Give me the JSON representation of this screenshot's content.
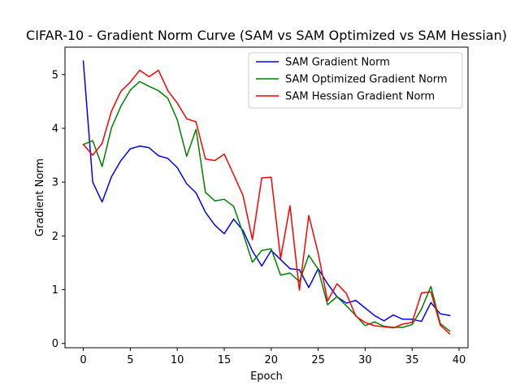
{
  "chart_data": {
    "type": "line",
    "title": "CIFAR-10 - Gradient Norm Curve (SAM vs SAM Optimized vs SAM Hessian)",
    "xlabel": "Epoch",
    "ylabel": "Gradient Norm",
    "xlim": [
      -1.95,
      40.95
    ],
    "ylim": [
      -0.08,
      5.51
    ],
    "xticks": [
      0,
      5,
      10,
      15,
      20,
      25,
      30,
      35,
      40
    ],
    "yticks": [
      0,
      1,
      2,
      3,
      4,
      5
    ],
    "grid": false,
    "legend_position": "top-right",
    "x": [
      0,
      1,
      2,
      3,
      4,
      5,
      6,
      7,
      8,
      9,
      10,
      11,
      12,
      13,
      14,
      15,
      16,
      17,
      18,
      19,
      20,
      21,
      22,
      23,
      24,
      25,
      26,
      27,
      28,
      29,
      30,
      31,
      32,
      33,
      34,
      35,
      36,
      37,
      38,
      39
    ],
    "series": [
      {
        "name": "SAM Gradient Norm",
        "color": "#0000ff",
        "values": [
          5.25,
          3.0,
          2.63,
          3.1,
          3.4,
          3.62,
          3.67,
          3.64,
          3.49,
          3.44,
          3.27,
          2.97,
          2.8,
          2.44,
          2.2,
          2.04,
          2.31,
          2.1,
          1.72,
          1.44,
          1.73,
          1.56,
          1.39,
          1.37,
          1.04,
          1.39,
          1.11,
          0.87,
          0.75,
          0.8,
          0.66,
          0.52,
          0.42,
          0.53,
          0.45,
          0.45,
          0.41,
          0.76,
          0.55,
          0.52
        ]
      },
      {
        "name": "SAM Optimized Gradient Norm",
        "color": "#008000",
        "values": [
          3.7,
          3.77,
          3.29,
          4.01,
          4.41,
          4.71,
          4.87,
          4.78,
          4.7,
          4.56,
          4.16,
          3.48,
          3.98,
          2.81,
          2.65,
          2.68,
          2.55,
          2.05,
          1.51,
          1.73,
          1.76,
          1.27,
          1.31,
          1.15,
          1.64,
          1.38,
          0.72,
          0.87,
          0.7,
          0.52,
          0.33,
          0.4,
          0.32,
          0.3,
          0.3,
          0.35,
          0.64,
          1.06,
          0.37,
          0.23
        ]
      },
      {
        "name": "SAM Hessian Gradient Norm",
        "color": "#ff0000",
        "values": [
          3.7,
          3.5,
          3.72,
          4.32,
          4.69,
          4.86,
          5.08,
          4.96,
          5.08,
          4.7,
          4.47,
          4.18,
          4.12,
          3.43,
          3.4,
          3.52,
          3.14,
          2.75,
          1.93,
          3.08,
          3.09,
          1.58,
          2.56,
          0.99,
          2.38,
          1.68,
          0.79,
          1.11,
          0.93,
          0.51,
          0.39,
          0.33,
          0.31,
          0.29,
          0.36,
          0.39,
          0.94,
          0.96,
          0.34,
          0.18
        ]
      }
    ]
  }
}
